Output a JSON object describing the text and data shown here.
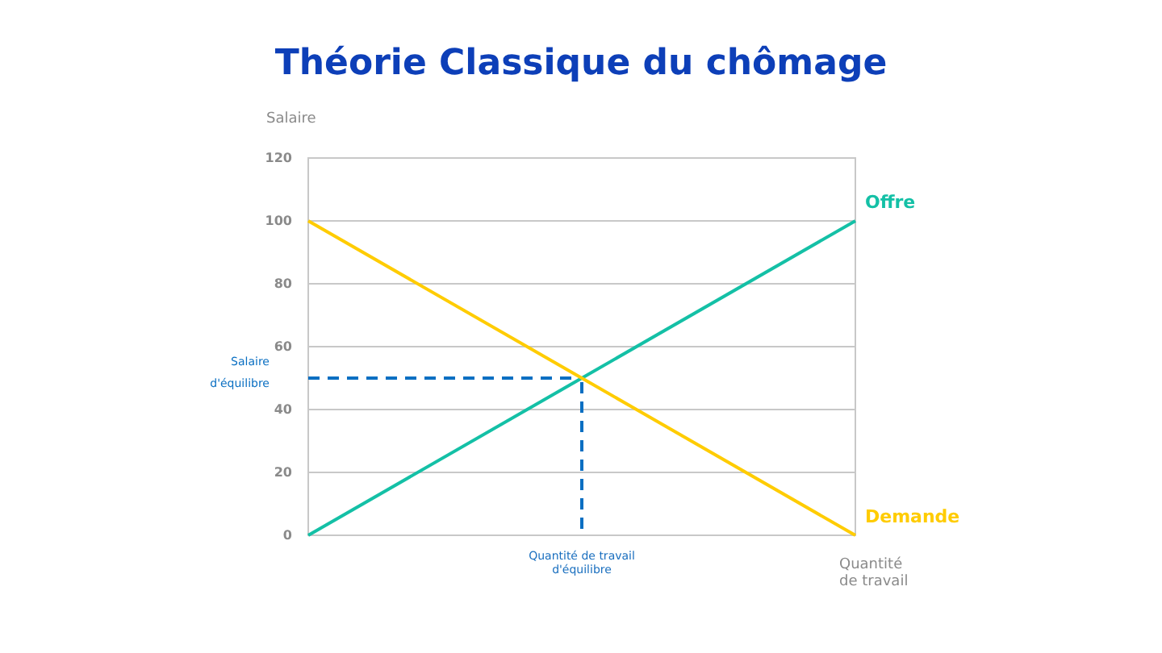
{
  "chart_data": {
    "type": "line",
    "title": "Théorie Classique du chômage",
    "xlabel": "Quantité de travail",
    "ylabel": "Salaire",
    "categories": [
      null,
      "Quantité de travail d'équilibre",
      null
    ],
    "series": [
      {
        "name": "Offre",
        "color": "#14c0a6",
        "values": [
          0,
          50,
          100
        ]
      },
      {
        "name": "Demande",
        "color": "#ffcc00",
        "values": [
          100,
          50,
          0
        ]
      }
    ],
    "ylim": [
      0,
      120
    ],
    "yticks": [
      0,
      20,
      40,
      60,
      80,
      100,
      120
    ],
    "grid": "y",
    "legend": false,
    "marker": "none",
    "line_style": "solid",
    "ref_lines": [
      {
        "axis": "y",
        "value": 50,
        "label": "Salaire d'équilibre",
        "color": "#0a6fc2",
        "line_style": "dashed"
      },
      {
        "axis": "x",
        "value": "Quantité de travail d'équilibre",
        "label": null,
        "color": "#0a6fc2",
        "line_style": "dashed"
      }
    ]
  }
}
